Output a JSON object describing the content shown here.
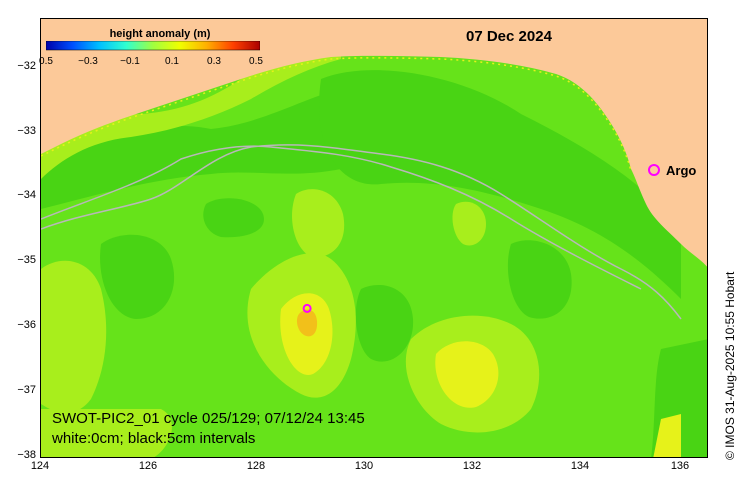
{
  "map": {
    "date": "07 Dec 2024",
    "info_line1": "SWOT-PIC2_01 cycle 025/129; 07/12/24 13:45",
    "info_line2": "white:0cm; black:5cm intervals",
    "credit": "© IMOS 31-Aug-2025 10:55 Hobart",
    "argo_label": "Argo",
    "colors": {
      "land": "#fcc999",
      "ocean_base": "#66e31a",
      "anomaly_low": "#49d414",
      "anomaly_mid": "#a8ee1c",
      "anomaly_high": "#e6f21a",
      "anomaly_peak": "#f2c01a",
      "argo_marker": "#ff00ff",
      "contour_shelf": "#b8b8b8"
    }
  },
  "colorbar": {
    "title": "height anomaly (m)",
    "tick_labels": [
      "0.5",
      "−0.3",
      "−0.1",
      "0.1",
      "0.3",
      "0.5"
    ],
    "colors": [
      "#0000aa",
      "#0050ff",
      "#00c0ff",
      "#30ffd0",
      "#a0ff40",
      "#f0ff00",
      "#ffb000",
      "#ff4000",
      "#aa0000"
    ]
  },
  "axes": {
    "lon_ticks": [
      "124",
      "126",
      "128",
      "130",
      "132",
      "134",
      "136"
    ],
    "lat_ticks": [
      "−32",
      "−33",
      "−34",
      "−35",
      "−36",
      "−37",
      "−38"
    ]
  },
  "argo_floats": [
    {
      "lon": 128.9,
      "lat": -35.99
    },
    {
      "lon": 135.5,
      "lat": -33.6
    }
  ]
}
